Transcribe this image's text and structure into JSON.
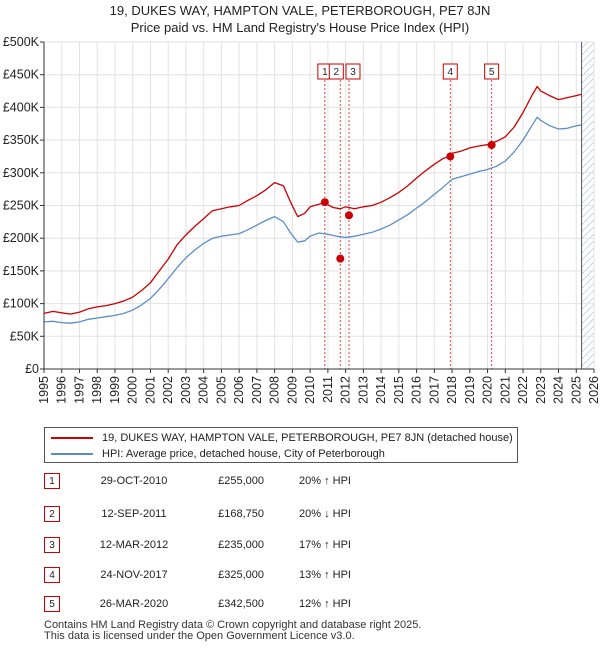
{
  "title": {
    "line1": "19, DUKES WAY, HAMPTON VALE, PETERBOROUGH, PE7 8JN",
    "line2": "Price paid vs. HM Land Registry's House Price Index (HPI)"
  },
  "colors": {
    "property": "#cc0000",
    "hpi": "#5b8ec6",
    "future_hatch": "#9aaad0",
    "marker": "#cc0000",
    "background": "#ffffff"
  },
  "chart_data": {
    "type": "line",
    "title": "19, DUKES WAY, HAMPTON VALE, PETERBOROUGH, PE7 8JN — Price paid vs. HM Land Registry's House Price Index (HPI)",
    "xlabel": "",
    "ylabel": "",
    "xlim": [
      1995,
      2026
    ],
    "ylim": [
      0,
      500000
    ],
    "grid": true,
    "y_ticks": [
      {
        "value": 0,
        "label": "£0"
      },
      {
        "value": 50000,
        "label": "£50K"
      },
      {
        "value": 100000,
        "label": "£100K"
      },
      {
        "value": 150000,
        "label": "£150K"
      },
      {
        "value": 200000,
        "label": "£200K"
      },
      {
        "value": 250000,
        "label": "£250K"
      },
      {
        "value": 300000,
        "label": "£300K"
      },
      {
        "value": 350000,
        "label": "£350K"
      },
      {
        "value": 400000,
        "label": "£400K"
      },
      {
        "value": 450000,
        "label": "£450K"
      },
      {
        "value": 500000,
        "label": "£500K"
      }
    ],
    "x_ticks": [
      "1995",
      "1996",
      "1997",
      "1998",
      "1999",
      "2000",
      "2001",
      "2002",
      "2003",
      "2004",
      "2005",
      "2006",
      "2007",
      "2008",
      "2009",
      "2010",
      "2011",
      "2012",
      "2013",
      "2014",
      "2015",
      "2016",
      "2017",
      "2018",
      "2019",
      "2020",
      "2021",
      "2022",
      "2023",
      "2024",
      "2025",
      "2026"
    ],
    "data_end": 2025.3,
    "series": [
      {
        "name": "19, DUKES WAY, HAMPTON VALE, PETERBOROUGH, PE7 8JN (detached house)",
        "color": "#cc0000",
        "points": [
          [
            1995,
            85000
          ],
          [
            1995.5,
            88000
          ],
          [
            1996,
            86000
          ],
          [
            1996.5,
            84000
          ],
          [
            1997,
            87000
          ],
          [
            1997.5,
            92000
          ],
          [
            1998,
            95000
          ],
          [
            1998.5,
            97000
          ],
          [
            1999,
            100000
          ],
          [
            1999.5,
            104000
          ],
          [
            2000,
            110000
          ],
          [
            2000.5,
            120000
          ],
          [
            2001,
            132000
          ],
          [
            2001.5,
            150000
          ],
          [
            2002,
            168000
          ],
          [
            2002.5,
            190000
          ],
          [
            2003,
            205000
          ],
          [
            2003.5,
            218000
          ],
          [
            2004,
            230000
          ],
          [
            2004.5,
            242000
          ],
          [
            2005,
            245000
          ],
          [
            2005.5,
            248000
          ],
          [
            2006,
            250000
          ],
          [
            2006.5,
            258000
          ],
          [
            2007,
            265000
          ],
          [
            2007.5,
            274000
          ],
          [
            2008,
            285000
          ],
          [
            2008.5,
            280000
          ],
          [
            2008.9,
            255000
          ],
          [
            2009.3,
            233000
          ],
          [
            2009.7,
            238000
          ],
          [
            2010,
            248000
          ],
          [
            2010.5,
            252000
          ],
          [
            2010.83,
            255000
          ],
          [
            2011,
            251000
          ],
          [
            2011.3,
            247000
          ],
          [
            2011.7,
            245000
          ],
          [
            2012,
            248000
          ],
          [
            2012.5,
            245000
          ],
          [
            2013,
            248000
          ],
          [
            2013.5,
            250000
          ],
          [
            2014,
            255000
          ],
          [
            2014.5,
            262000
          ],
          [
            2015,
            270000
          ],
          [
            2015.5,
            280000
          ],
          [
            2016,
            292000
          ],
          [
            2016.5,
            303000
          ],
          [
            2017,
            313000
          ],
          [
            2017.5,
            322000
          ],
          [
            2017.9,
            325000
          ],
          [
            2018,
            330000
          ],
          [
            2018.5,
            333000
          ],
          [
            2019,
            338000
          ],
          [
            2019.5,
            341000
          ],
          [
            2020,
            343000
          ],
          [
            2020.5,
            348000
          ],
          [
            2021,
            355000
          ],
          [
            2021.5,
            370000
          ],
          [
            2022,
            392000
          ],
          [
            2022.5,
            418000
          ],
          [
            2022.8,
            432000
          ],
          [
            2023,
            425000
          ],
          [
            2023.5,
            418000
          ],
          [
            2024,
            412000
          ],
          [
            2024.5,
            415000
          ],
          [
            2025,
            418000
          ],
          [
            2025.3,
            420000
          ]
        ]
      },
      {
        "name": "HPI: Average price, detached house, City of Peterborough",
        "color": "#5b8ec6",
        "points": [
          [
            1995,
            72000
          ],
          [
            1995.5,
            73000
          ],
          [
            1996,
            71000
          ],
          [
            1996.5,
            70000
          ],
          [
            1997,
            72000
          ],
          [
            1997.5,
            76000
          ],
          [
            1998,
            78000
          ],
          [
            1998.5,
            80000
          ],
          [
            1999,
            82000
          ],
          [
            1999.5,
            85000
          ],
          [
            2000,
            90000
          ],
          [
            2000.5,
            98000
          ],
          [
            2001,
            108000
          ],
          [
            2001.5,
            122000
          ],
          [
            2002,
            138000
          ],
          [
            2002.5,
            155000
          ],
          [
            2003,
            170000
          ],
          [
            2003.5,
            182000
          ],
          [
            2004,
            192000
          ],
          [
            2004.5,
            200000
          ],
          [
            2005,
            203000
          ],
          [
            2005.5,
            205000
          ],
          [
            2006,
            207000
          ],
          [
            2006.5,
            213000
          ],
          [
            2007,
            220000
          ],
          [
            2007.5,
            227000
          ],
          [
            2008,
            233000
          ],
          [
            2008.5,
            225000
          ],
          [
            2008.9,
            208000
          ],
          [
            2009.3,
            194000
          ],
          [
            2009.7,
            196000
          ],
          [
            2010,
            203000
          ],
          [
            2010.5,
            208000
          ],
          [
            2011,
            206000
          ],
          [
            2011.5,
            203000
          ],
          [
            2012,
            201000
          ],
          [
            2012.5,
            203000
          ],
          [
            2013,
            206000
          ],
          [
            2013.5,
            209000
          ],
          [
            2014,
            214000
          ],
          [
            2014.5,
            220000
          ],
          [
            2015,
            228000
          ],
          [
            2015.5,
            236000
          ],
          [
            2016,
            246000
          ],
          [
            2016.5,
            256000
          ],
          [
            2017,
            267000
          ],
          [
            2017.5,
            278000
          ],
          [
            2018,
            290000
          ],
          [
            2018.5,
            294000
          ],
          [
            2019,
            298000
          ],
          [
            2019.5,
            302000
          ],
          [
            2020,
            305000
          ],
          [
            2020.5,
            310000
          ],
          [
            2021,
            318000
          ],
          [
            2021.5,
            332000
          ],
          [
            2022,
            350000
          ],
          [
            2022.5,
            372000
          ],
          [
            2022.8,
            385000
          ],
          [
            2023,
            380000
          ],
          [
            2023.5,
            372000
          ],
          [
            2024,
            367000
          ],
          [
            2024.5,
            368000
          ],
          [
            2025,
            372000
          ],
          [
            2025.3,
            373000
          ]
        ]
      }
    ],
    "sales": [
      {
        "label": "1",
        "date": "29-OCT-2010",
        "x": 2010.83,
        "price": 255000,
        "price_label": "£255,000",
        "hpi_note": "20% ↑ HPI"
      },
      {
        "label": "2",
        "date": "12-SEP-2011",
        "x": 2011.7,
        "price": 168750,
        "price_label": "£168,750",
        "hpi_note": "20% ↓ HPI"
      },
      {
        "label": "3",
        "date": "12-MAR-2012",
        "x": 2012.19,
        "price": 235000,
        "price_label": "£235,000",
        "hpi_note": "17% ↑ HPI"
      },
      {
        "label": "4",
        "date": "24-NOV-2017",
        "x": 2017.9,
        "price": 325000,
        "price_label": "£325,000",
        "hpi_note": "13% ↑ HPI"
      },
      {
        "label": "5",
        "date": "26-MAR-2020",
        "x": 2020.23,
        "price": 342500,
        "price_label": "£342,500",
        "hpi_note": "12% ↑ HPI"
      }
    ]
  },
  "legend": {
    "property": "19, DUKES WAY, HAMPTON VALE, PETERBOROUGH, PE7 8JN (detached house)",
    "hpi": "HPI: Average price, detached house, City of Peterborough"
  },
  "footer": {
    "line1": "Contains HM Land Registry data © Crown copyright and database right 2025.",
    "line2": "This data is licensed under the Open Government Licence v3.0."
  }
}
